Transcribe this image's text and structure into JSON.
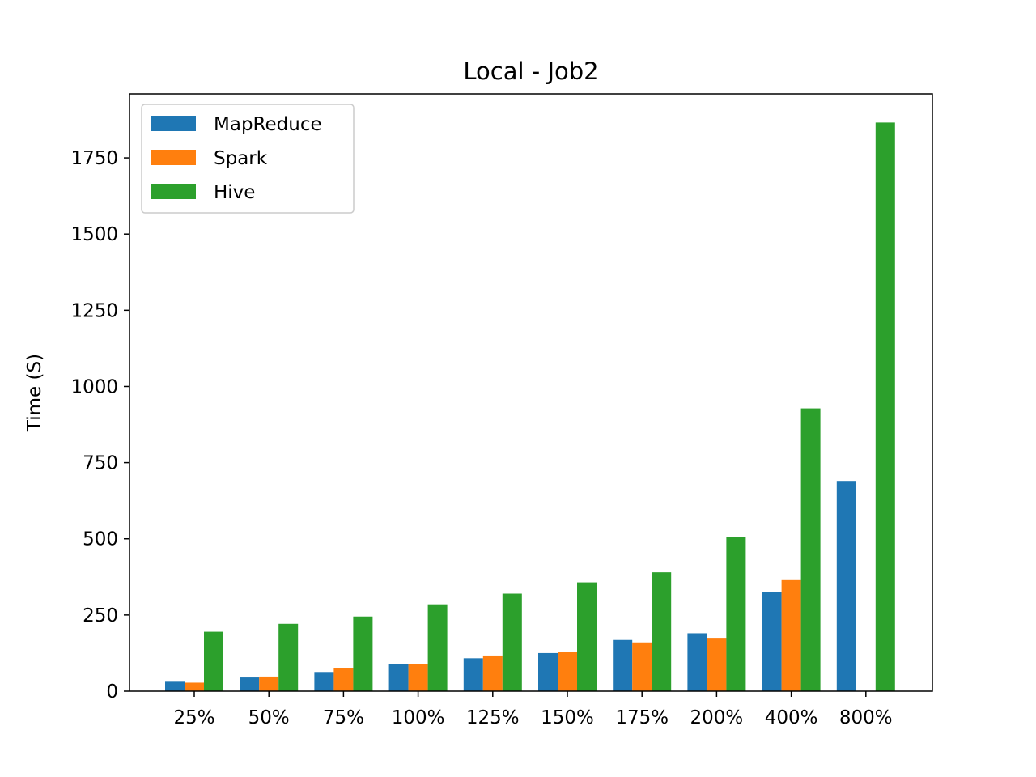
{
  "chart_data": {
    "type": "bar",
    "title": "Local - Job2",
    "xlabel": "",
    "ylabel": "Time (S)",
    "categories": [
      "25%",
      "50%",
      "75%",
      "100%",
      "125%",
      "150%",
      "175%",
      "200%",
      "400%",
      "800%"
    ],
    "series": [
      {
        "name": "MapReduce",
        "color": "#1f77b4",
        "values": [
          31,
          45,
          63,
          90,
          108,
          125,
          168,
          190,
          325,
          690
        ]
      },
      {
        "name": "Spark",
        "color": "#ff7f0e",
        "values": [
          28,
          48,
          77,
          90,
          117,
          130,
          160,
          175,
          367,
          0
        ]
      },
      {
        "name": "Hive",
        "color": "#2ca02c",
        "values": [
          195,
          221,
          245,
          285,
          320,
          357,
          390,
          507,
          928,
          1866
        ]
      }
    ],
    "ylim": [
      0,
      1960
    ],
    "yticks": [
      0,
      250,
      500,
      750,
      1000,
      1250,
      1500,
      1750
    ],
    "grid": false,
    "legend_position": "top-left"
  }
}
